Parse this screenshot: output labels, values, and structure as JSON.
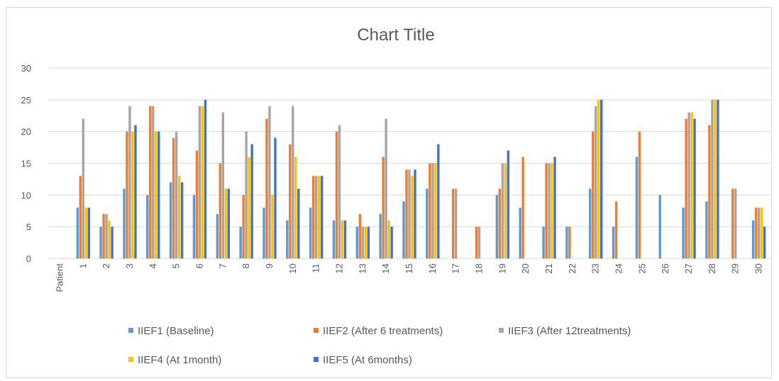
{
  "chart_data": {
    "type": "bar",
    "title": "Chart Title",
    "xlabel": "",
    "ylabel": "",
    "ylim": [
      0,
      30
    ],
    "yticks": [
      0,
      5,
      10,
      15,
      20,
      25,
      30
    ],
    "grid": true,
    "legend_position": "bottom",
    "first_category_label": "Patient",
    "categories": [
      "1",
      "2",
      "3",
      "4",
      "5",
      "6",
      "7",
      "8",
      "9",
      "10",
      "11",
      "12",
      "13",
      "14",
      "15",
      "16",
      "17",
      "18",
      "19",
      "20",
      "21",
      "22",
      "23",
      "24",
      "25",
      "26",
      "27",
      "28",
      "29",
      "30"
    ],
    "series": [
      {
        "name": "IIEF1 (Baseline)",
        "color": "#5b9bd5",
        "values": [
          8,
          5,
          11,
          10,
          12,
          10,
          7,
          5,
          8,
          6,
          8,
          6,
          5,
          7,
          9,
          11,
          null,
          null,
          10,
          8,
          5,
          5,
          11,
          5,
          16,
          10,
          8,
          9,
          null,
          6
        ]
      },
      {
        "name": "IIEF2 (After 6 treatments)",
        "color": "#ed7d31",
        "values": [
          13,
          7,
          20,
          24,
          19,
          17,
          15,
          10,
          22,
          18,
          13,
          20,
          7,
          16,
          14,
          15,
          11,
          5,
          11,
          16,
          15,
          5,
          20,
          9,
          20,
          null,
          22,
          21,
          11,
          8
        ]
      },
      {
        "name": "IIEF3 (After 12treatments)",
        "color": "#a5a5a5",
        "values": [
          22,
          7,
          24,
          24,
          20,
          24,
          23,
          20,
          24,
          24,
          13,
          21,
          5,
          22,
          14,
          15,
          11,
          5,
          15,
          null,
          15,
          null,
          24,
          null,
          null,
          null,
          23,
          25,
          11,
          8
        ]
      },
      {
        "name": "IIEF4 (At 1month)",
        "color": "#ffc000",
        "values": [
          8,
          6,
          20,
          20,
          13,
          24,
          11,
          16,
          10,
          16,
          13,
          6,
          5,
          6,
          13,
          15,
          null,
          null,
          15,
          null,
          15,
          null,
          25,
          null,
          null,
          null,
          23,
          25,
          null,
          8
        ]
      },
      {
        "name": "IIEF5 (At 6months)",
        "color": "#4472c4",
        "values": [
          8,
          5,
          21,
          20,
          12,
          25,
          11,
          18,
          19,
          11,
          13,
          6,
          5,
          5,
          14,
          18,
          null,
          null,
          17,
          null,
          16,
          null,
          25,
          null,
          null,
          null,
          22,
          25,
          null,
          5
        ]
      }
    ]
  }
}
